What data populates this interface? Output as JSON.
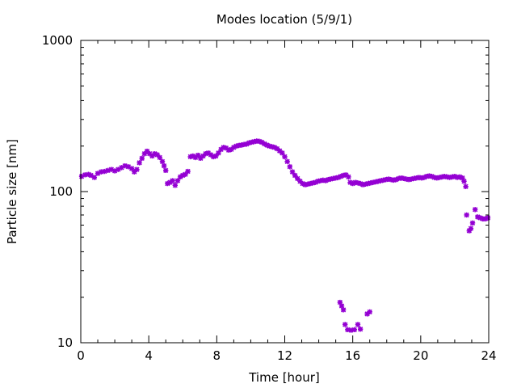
{
  "chart_data": {
    "type": "scatter",
    "title": "Modes location (5/9/1)",
    "xlabel": "Time [hour]",
    "ylabel": "Particle size [nm]",
    "xlim": [
      0,
      24
    ],
    "ylim": [
      10,
      1000
    ],
    "yscale": "log",
    "xticks": [
      0,
      4,
      8,
      12,
      16,
      20,
      24
    ],
    "xtick_labels": [
      "0",
      "4",
      "8",
      "12",
      "16",
      "20",
      "24"
    ],
    "yticks": [
      10,
      100,
      1000
    ],
    "ytick_labels": [
      "10",
      "100",
      "1000"
    ],
    "grid": false,
    "legend": "none",
    "marker_color": "#9400d3",
    "series": [
      {
        "marker": "star",
        "points": [
          [
            0.05,
            126
          ],
          [
            0.25,
            129
          ],
          [
            0.45,
            130
          ],
          [
            0.6,
            128
          ],
          [
            0.8,
            124
          ],
          [
            1.0,
            132
          ],
          [
            1.2,
            135
          ],
          [
            1.4,
            136
          ],
          [
            1.6,
            138
          ],
          [
            1.8,
            140
          ],
          [
            2.0,
            137
          ],
          [
            2.2,
            140
          ],
          [
            2.4,
            144
          ],
          [
            2.6,
            148
          ],
          [
            2.8,
            146
          ],
          [
            3.0,
            142
          ],
          [
            3.15,
            135
          ],
          [
            3.3,
            140
          ],
          [
            3.45,
            155
          ],
          [
            3.6,
            166
          ],
          [
            3.75,
            178
          ],
          [
            3.9,
            185
          ],
          [
            4.05,
            178
          ],
          [
            4.2,
            172
          ],
          [
            4.35,
            178
          ],
          [
            4.5,
            175
          ],
          [
            4.65,
            168
          ],
          [
            4.8,
            158
          ],
          [
            4.9,
            148
          ],
          [
            5.0,
            138
          ],
          [
            5.1,
            113
          ],
          [
            5.25,
            115
          ],
          [
            5.4,
            118
          ],
          [
            5.55,
            110
          ],
          [
            5.7,
            118
          ],
          [
            5.85,
            125
          ],
          [
            6.0,
            128
          ],
          [
            6.15,
            130
          ],
          [
            6.3,
            136
          ],
          [
            6.45,
            170
          ],
          [
            6.6,
            172
          ],
          [
            6.75,
            168
          ],
          [
            6.9,
            174
          ],
          [
            7.05,
            166
          ],
          [
            7.2,
            172
          ],
          [
            7.35,
            178
          ],
          [
            7.5,
            180
          ],
          [
            7.65,
            175
          ],
          [
            7.8,
            170
          ],
          [
            7.95,
            172
          ],
          [
            8.1,
            180
          ],
          [
            8.25,
            190
          ],
          [
            8.4,
            196
          ],
          [
            8.55,
            194
          ],
          [
            8.7,
            188
          ],
          [
            8.85,
            190
          ],
          [
            9.0,
            196
          ],
          [
            9.15,
            200
          ],
          [
            9.3,
            202
          ],
          [
            9.45,
            203
          ],
          [
            9.6,
            205
          ],
          [
            9.75,
            206
          ],
          [
            9.9,
            210
          ],
          [
            10.05,
            212
          ],
          [
            10.2,
            214
          ],
          [
            10.35,
            216
          ],
          [
            10.5,
            215
          ],
          [
            10.65,
            212
          ],
          [
            10.8,
            207
          ],
          [
            10.95,
            203
          ],
          [
            11.1,
            200
          ],
          [
            11.25,
            198
          ],
          [
            11.4,
            196
          ],
          [
            11.55,
            192
          ],
          [
            11.7,
            186
          ],
          [
            11.85,
            180
          ],
          [
            12.0,
            170
          ],
          [
            12.15,
            158
          ],
          [
            12.3,
            146
          ],
          [
            12.45,
            135
          ],
          [
            12.6,
            128
          ],
          [
            12.75,
            122
          ],
          [
            12.9,
            117
          ],
          [
            13.05,
            113
          ],
          [
            13.2,
            111
          ],
          [
            13.35,
            112
          ],
          [
            13.5,
            113
          ],
          [
            13.65,
            114
          ],
          [
            13.8,
            115
          ],
          [
            13.95,
            117
          ],
          [
            14.1,
            118
          ],
          [
            14.25,
            119
          ],
          [
            14.4,
            118
          ],
          [
            14.55,
            120
          ],
          [
            14.7,
            121
          ],
          [
            14.85,
            122
          ],
          [
            15.0,
            123
          ],
          [
            15.15,
            124
          ],
          [
            15.3,
            126
          ],
          [
            15.45,
            128
          ],
          [
            15.6,
            129
          ],
          [
            15.75,
            125
          ],
          [
            15.85,
            115
          ],
          [
            16.0,
            113
          ],
          [
            16.15,
            115
          ],
          [
            16.3,
            114
          ],
          [
            16.45,
            113
          ],
          [
            16.6,
            111
          ],
          [
            16.75,
            112
          ],
          [
            16.9,
            113
          ],
          [
            17.05,
            114
          ],
          [
            17.2,
            115
          ],
          [
            17.35,
            116
          ],
          [
            17.5,
            117
          ],
          [
            17.65,
            118
          ],
          [
            17.8,
            119
          ],
          [
            17.95,
            120
          ],
          [
            18.1,
            121
          ],
          [
            18.25,
            120
          ],
          [
            18.4,
            119
          ],
          [
            18.55,
            120
          ],
          [
            18.7,
            122
          ],
          [
            18.85,
            123
          ],
          [
            19.0,
            122
          ],
          [
            19.15,
            121
          ],
          [
            19.3,
            120
          ],
          [
            19.45,
            121
          ],
          [
            19.6,
            122
          ],
          [
            19.75,
            123
          ],
          [
            19.9,
            124
          ],
          [
            20.05,
            123
          ],
          [
            20.2,
            124
          ],
          [
            20.35,
            126
          ],
          [
            20.5,
            127
          ],
          [
            20.65,
            126
          ],
          [
            20.8,
            124
          ],
          [
            20.95,
            123
          ],
          [
            21.1,
            124
          ],
          [
            21.25,
            125
          ],
          [
            21.4,
            126
          ],
          [
            21.55,
            125
          ],
          [
            21.7,
            124
          ],
          [
            21.85,
            125
          ],
          [
            22.0,
            126
          ],
          [
            22.15,
            124
          ],
          [
            22.3,
            125
          ],
          [
            22.45,
            123
          ],
          [
            22.55,
            117
          ],
          [
            22.65,
            108
          ],
          [
            22.7,
            70
          ],
          [
            22.85,
            55
          ],
          [
            22.95,
            57
          ],
          [
            23.05,
            62
          ],
          [
            23.2,
            76
          ],
          [
            23.35,
            68
          ],
          [
            23.5,
            67
          ],
          [
            23.65,
            66
          ],
          [
            23.8,
            66
          ],
          [
            23.95,
            67
          ],
          [
            15.25,
            18.5
          ],
          [
            15.35,
            17.5
          ],
          [
            15.45,
            16.5
          ],
          [
            15.55,
            13.2
          ],
          [
            15.7,
            12.2
          ],
          [
            15.9,
            12.1
          ],
          [
            16.1,
            12.2
          ],
          [
            16.3,
            13.2
          ],
          [
            16.45,
            12.3
          ],
          [
            16.85,
            15.5
          ],
          [
            17.0,
            16.0
          ]
        ]
      }
    ]
  }
}
